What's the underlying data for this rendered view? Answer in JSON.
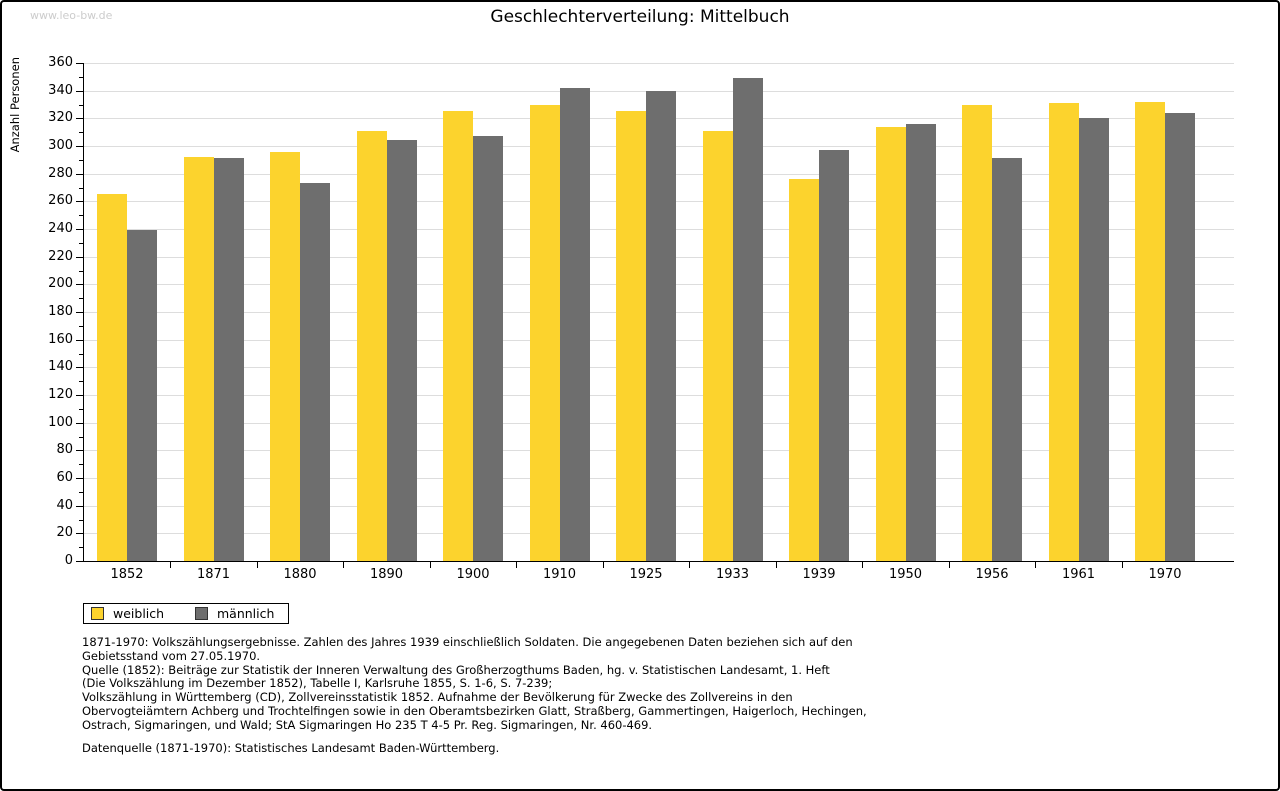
{
  "page": {
    "watermark": "www.leo-bw.de",
    "title": "Geschlechterverteilung: Mittelbuch"
  },
  "chart_data": {
    "type": "bar",
    "title": "Geschlechterverteilung: Mittelbuch",
    "xlabel": "",
    "ylabel": "Anzahl Personen",
    "ylim": [
      0,
      360
    ],
    "ytick_step": 20,
    "yminor_step": 10,
    "grid": true,
    "legend_position": "bottom-left",
    "categories": [
      "1852",
      "1871",
      "1880",
      "1890",
      "1900",
      "1910",
      "1925",
      "1933",
      "1939",
      "1950",
      "1956",
      "1961",
      "1970"
    ],
    "series": [
      {
        "name": "weiblich",
        "color": "#FCD32D",
        "values": [
          265,
          292,
          296,
          311,
          325,
          330,
          325,
          311,
          276,
          314,
          330,
          331,
          332
        ]
      },
      {
        "name": "männlich",
        "color": "#6E6E6E",
        "values": [
          239,
          291,
          273,
          304,
          307,
          342,
          340,
          349,
          297,
          316,
          291,
          320,
          324
        ]
      }
    ],
    "colors": {
      "grid": "#DDDDDD",
      "axis": "#000000"
    }
  },
  "footer": {
    "notes": [
      "1871-1970: Volkszählungsergebnisse. Zahlen des Jahres 1939 einschließlich Soldaten. Die angegebenen Daten beziehen sich auf den",
      "Gebietsstand vom 27.05.1970.",
      "Quelle (1852): Beiträge zur Statistik der Inneren Verwaltung des Großherzogthums Baden, hg. v. Statistischen Landesamt, 1. Heft",
      "(Die Volkszählung im Dezember 1852), Tabelle I, Karlsruhe 1855, S. 1-6, S. 7-239;",
      "Volkszählung in Württemberg (CD), Zollvereinsstatistik 1852. Aufnahme der Bevölkerung für Zwecke des Zollvereins in den",
      "Obervogteiämtern Achberg und Trochtelfingen sowie in den Oberamtsbezirken Glatt, Straßberg, Gammertingen, Haigerloch, Hechingen,",
      "Ostrach, Sigmaringen, und Wald; StA Sigmaringen Ho 235 T 4-5 Pr. Reg. Sigmaringen, Nr. 460-469."
    ],
    "source": "Datenquelle (1871-1970): Statistisches Landesamt Baden-Württemberg."
  }
}
